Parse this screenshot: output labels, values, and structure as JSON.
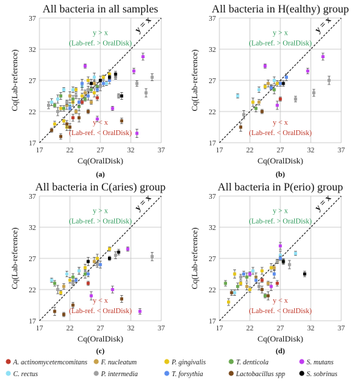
{
  "figure": {
    "ann_upper": "y > x",
    "ann_upper2": "(Lab-ref. > OralDisk)",
    "ann_lower": "y < x",
    "ann_lower2": "(Lab-ref. < OralDisk)",
    "diagonal_label": "y = x"
  },
  "legend": [
    {
      "name": "A. actinomycetemcomitans",
      "color": "#c0392b"
    },
    {
      "name": "F. nucleatum",
      "color": "#c8a14b"
    },
    {
      "name": "P. gingivalis",
      "color": "#e6c619"
    },
    {
      "name": "T. denticola",
      "color": "#6aa84f"
    },
    {
      "name": "S. mutans",
      "color": "#c03cf0"
    },
    {
      "name": "C. rectus",
      "color": "#8fe0f5"
    },
    {
      "name": "P. intermedia",
      "color": "#a0a0a0"
    },
    {
      "name": "T. forsythia",
      "color": "#5b8def"
    },
    {
      "name": "Lactobacillus spp",
      "color": "#7a4a1c"
    },
    {
      "name": "S. sobrinus",
      "color": "#000000"
    }
  ],
  "chart_data": [
    {
      "type": "scatter",
      "title": "All bacteria in all samples",
      "xlabel": "Cq(OralDisk)",
      "ylabel": "Cq(Lab-reference)",
      "letter": "(a)",
      "xlim": [
        17,
        37
      ],
      "ylim": [
        17,
        37
      ],
      "ticks": [
        17,
        22,
        27,
        32,
        37
      ],
      "grid": true,
      "points": [
        {
          "s": "A. actinomycetemcomitans",
          "x": 24.0,
          "y": 23.5
        },
        {
          "s": "A. actinomycetemcomitans",
          "x": 26.5,
          "y": 24.2
        },
        {
          "s": "A. actinomycetemcomitans",
          "x": 22.5,
          "y": 21.0
        },
        {
          "s": "F. nucleatum",
          "x": 21.5,
          "y": 23.0
        },
        {
          "s": "F. nucleatum",
          "x": 23.0,
          "y": 22.0
        },
        {
          "s": "F. nucleatum",
          "x": 24.5,
          "y": 25.0
        },
        {
          "s": "F. nucleatum",
          "x": 26.0,
          "y": 26.5
        },
        {
          "s": "F. nucleatum",
          "x": 22.0,
          "y": 24.5
        },
        {
          "s": "F. nucleatum",
          "x": 25.5,
          "y": 23.5
        },
        {
          "s": "P. gingivalis",
          "x": 20.5,
          "y": 22.5
        },
        {
          "s": "P. gingivalis",
          "x": 21.0,
          "y": 20.5
        },
        {
          "s": "P. gingivalis",
          "x": 22.5,
          "y": 23.5
        },
        {
          "s": "P. gingivalis",
          "x": 23.0,
          "y": 25.5
        },
        {
          "s": "P. gingivalis",
          "x": 24.0,
          "y": 24.5
        },
        {
          "s": "P. gingivalis",
          "x": 25.0,
          "y": 27.0
        },
        {
          "s": "P. gingivalis",
          "x": 26.0,
          "y": 25.0
        },
        {
          "s": "P. gingivalis",
          "x": 27.5,
          "y": 27.5
        },
        {
          "s": "P. gingivalis",
          "x": 19.5,
          "y": 20.0
        },
        {
          "s": "P. gingivalis",
          "x": 21.5,
          "y": 19.5
        },
        {
          "s": "P. gingivalis",
          "x": 28.5,
          "y": 28.0
        },
        {
          "s": "T. denticola",
          "x": 19.5,
          "y": 23.0
        },
        {
          "s": "T. denticola",
          "x": 21.0,
          "y": 22.5
        },
        {
          "s": "T. denticola",
          "x": 22.5,
          "y": 24.0
        },
        {
          "s": "T. denticola",
          "x": 23.5,
          "y": 22.8
        },
        {
          "s": "T. denticola",
          "x": 24.5,
          "y": 24.0
        },
        {
          "s": "T. denticola",
          "x": 25.5,
          "y": 25.5
        },
        {
          "s": "T. denticola",
          "x": 20.5,
          "y": 24.5
        },
        {
          "s": "T. denticola",
          "x": 26.5,
          "y": 26.0
        },
        {
          "s": "S. mutans",
          "x": 24.5,
          "y": 29.3
        },
        {
          "s": "S. mutans",
          "x": 32.5,
          "y": 28.5
        },
        {
          "s": "S. mutans",
          "x": 34.0,
          "y": 30.8
        },
        {
          "s": "S. mutans",
          "x": 33.0,
          "y": 18.5
        },
        {
          "s": "S. mutans",
          "x": 29.0,
          "y": 22.5
        },
        {
          "s": "S. mutans",
          "x": 26.5,
          "y": 20.8
        },
        {
          "s": "C. rectus",
          "x": 19.0,
          "y": 23.5
        },
        {
          "s": "C. rectus",
          "x": 20.0,
          "y": 24.0
        },
        {
          "s": "C. rectus",
          "x": 21.0,
          "y": 25.5
        },
        {
          "s": "C. rectus",
          "x": 22.5,
          "y": 25.5
        },
        {
          "s": "C. rectus",
          "x": 24.0,
          "y": 26.0
        },
        {
          "s": "C. rectus",
          "x": 26.0,
          "y": 27.5
        },
        {
          "s": "C. rectus",
          "x": 28.0,
          "y": 26.5
        },
        {
          "s": "C. rectus",
          "x": 22.0,
          "y": 23.0
        },
        {
          "s": "P. intermedia",
          "x": 18.5,
          "y": 23.0
        },
        {
          "s": "P. intermedia",
          "x": 20.0,
          "y": 22.0
        },
        {
          "s": "P. intermedia",
          "x": 21.5,
          "y": 23.5
        },
        {
          "s": "P. intermedia",
          "x": 23.0,
          "y": 24.5
        },
        {
          "s": "P. intermedia",
          "x": 25.0,
          "y": 25.5
        },
        {
          "s": "P. intermedia",
          "x": 27.0,
          "y": 26.0
        },
        {
          "s": "P. intermedia",
          "x": 29.5,
          "y": 27.5
        },
        {
          "s": "P. intermedia",
          "x": 33.0,
          "y": 26.5
        },
        {
          "s": "P. intermedia",
          "x": 35.5,
          "y": 27.5
        },
        {
          "s": "P. intermedia",
          "x": 34.5,
          "y": 25.0
        },
        {
          "s": "P. intermedia",
          "x": 30.0,
          "y": 24.5
        },
        {
          "s": "T. forsythia",
          "x": 22.0,
          "y": 22.5
        },
        {
          "s": "T. forsythia",
          "x": 23.5,
          "y": 23.5
        },
        {
          "s": "T. forsythia",
          "x": 25.0,
          "y": 24.5
        },
        {
          "s": "T. forsythia",
          "x": 26.5,
          "y": 25.5
        },
        {
          "s": "T. forsythia",
          "x": 27.5,
          "y": 26.5
        },
        {
          "s": "T. forsythia",
          "x": 28.5,
          "y": 27.0
        },
        {
          "s": "T. forsythia",
          "x": 24.0,
          "y": 26.5
        },
        {
          "s": "Lactobacillus spp",
          "x": 19.0,
          "y": 19.0
        },
        {
          "s": "Lactobacillus spp",
          "x": 20.5,
          "y": 18.0
        },
        {
          "s": "Lactobacillus spp",
          "x": 22.0,
          "y": 19.5
        },
        {
          "s": "Lactobacillus spp",
          "x": 23.5,
          "y": 21.0
        },
        {
          "s": "Lactobacillus spp",
          "x": 25.0,
          "y": 22.0
        },
        {
          "s": "Lactobacillus spp",
          "x": 30.5,
          "y": 20.5
        },
        {
          "s": "Lactobacillus spp",
          "x": 21.5,
          "y": 20.0
        },
        {
          "s": "S. sobrinus",
          "x": 25.5,
          "y": 26.5
        },
        {
          "s": "S. sobrinus",
          "x": 28.5,
          "y": 27.5
        },
        {
          "s": "S. sobrinus",
          "x": 29.5,
          "y": 28.0
        },
        {
          "s": "S. sobrinus",
          "x": 30.5,
          "y": 24.5
        },
        {
          "s": "S. sobrinus",
          "x": 27.0,
          "y": 27.0
        }
      ]
    },
    {
      "type": "scatter",
      "title": "All bacteria in H(ealthy) group",
      "xlabel": "Cq(OralDisk)",
      "ylabel": "Cq(Lab-reference)",
      "letter": "(b)",
      "xlim": [
        17,
        37
      ],
      "ylim": [
        17,
        37
      ],
      "ticks": [
        17,
        22,
        27,
        32,
        37
      ],
      "grid": true,
      "points": [
        {
          "s": "A. actinomycetemcomitans",
          "x": 27.0,
          "y": 24.0
        },
        {
          "s": "F. nucleatum",
          "x": 23.5,
          "y": 23.5
        },
        {
          "s": "F. nucleatum",
          "x": 25.0,
          "y": 26.5
        },
        {
          "s": "P. gingivalis",
          "x": 22.5,
          "y": 23.5
        },
        {
          "s": "P. gingivalis",
          "x": 24.5,
          "y": 26.0
        },
        {
          "s": "P. gingivalis",
          "x": 26.5,
          "y": 26.5
        },
        {
          "s": "T. denticola",
          "x": 23.0,
          "y": 22.5
        },
        {
          "s": "T. denticola",
          "x": 26.0,
          "y": 25.5
        },
        {
          "s": "S. mutans",
          "x": 24.5,
          "y": 29.3
        },
        {
          "s": "S. mutans",
          "x": 31.5,
          "y": 28.5
        },
        {
          "s": "S. mutans",
          "x": 34.0,
          "y": 30.8
        },
        {
          "s": "S. mutans",
          "x": 26.5,
          "y": 23.0
        },
        {
          "s": "C. rectus",
          "x": 20.0,
          "y": 24.5
        },
        {
          "s": "C. rectus",
          "x": 23.5,
          "y": 25.5
        },
        {
          "s": "C. rectus",
          "x": 26.0,
          "y": 27.0
        },
        {
          "s": "P. intermedia",
          "x": 21.0,
          "y": 21.5
        },
        {
          "s": "P. intermedia",
          "x": 25.5,
          "y": 26.0
        },
        {
          "s": "P. intermedia",
          "x": 29.5,
          "y": 24.0
        },
        {
          "s": "P. intermedia",
          "x": 32.5,
          "y": 25.0
        },
        {
          "s": "P. intermedia",
          "x": 35.0,
          "y": 27.0
        },
        {
          "s": "T. forsythia",
          "x": 25.5,
          "y": 25.8
        },
        {
          "s": "T. forsythia",
          "x": 27.0,
          "y": 26.5
        },
        {
          "s": "T. forsythia",
          "x": 28.0,
          "y": 27.5
        },
        {
          "s": "Lactobacillus spp",
          "x": 20.5,
          "y": 19.5
        },
        {
          "s": "Lactobacillus spp",
          "x": 24.0,
          "y": 22.0
        },
        {
          "s": "S. sobrinus",
          "x": 27.5,
          "y": 26.5
        }
      ]
    },
    {
      "type": "scatter",
      "title": "All bacteria in C(aries) group",
      "xlabel": "Cq(OralDisk)",
      "ylabel": "Cq(Lab-reference)",
      "letter": "(c)",
      "xlim": [
        17,
        37
      ],
      "ylim": [
        17,
        37
      ],
      "ticks": [
        17,
        22,
        27,
        32,
        37
      ],
      "grid": true,
      "points": [
        {
          "s": "A. actinomycetemcomitans",
          "x": 25.0,
          "y": 23.0
        },
        {
          "s": "F. nucleatum",
          "x": 21.0,
          "y": 22.5
        },
        {
          "s": "F. nucleatum",
          "x": 23.5,
          "y": 25.0
        },
        {
          "s": "F. nucleatum",
          "x": 26.0,
          "y": 26.5
        },
        {
          "s": "P. gingivalis",
          "x": 20.5,
          "y": 21.5
        },
        {
          "s": "P. gingivalis",
          "x": 22.0,
          "y": 23.5
        },
        {
          "s": "P. gingivalis",
          "x": 24.5,
          "y": 25.5
        },
        {
          "s": "P. gingivalis",
          "x": 26.5,
          "y": 27.0
        },
        {
          "s": "P. gingivalis",
          "x": 28.5,
          "y": 28.5
        },
        {
          "s": "T. denticola",
          "x": 19.5,
          "y": 23.0
        },
        {
          "s": "T. denticola",
          "x": 22.5,
          "y": 24.0
        },
        {
          "s": "T. denticola",
          "x": 24.5,
          "y": 24.5
        },
        {
          "s": "S. mutans",
          "x": 31.5,
          "y": 28.5
        },
        {
          "s": "S. mutans",
          "x": 33.5,
          "y": 18.5
        },
        {
          "s": "S. mutans",
          "x": 29.0,
          "y": 22.0
        },
        {
          "s": "S. mutans",
          "x": 25.5,
          "y": 21.0
        },
        {
          "s": "C. rectus",
          "x": 19.0,
          "y": 23.5
        },
        {
          "s": "C. rectus",
          "x": 21.5,
          "y": 24.5
        },
        {
          "s": "C. rectus",
          "x": 23.5,
          "y": 25.0
        },
        {
          "s": "P. intermedia",
          "x": 20.0,
          "y": 22.0
        },
        {
          "s": "P. intermedia",
          "x": 22.5,
          "y": 23.0
        },
        {
          "s": "P. intermedia",
          "x": 26.5,
          "y": 26.0
        },
        {
          "s": "P. intermedia",
          "x": 29.5,
          "y": 27.5
        },
        {
          "s": "P. intermedia",
          "x": 35.5,
          "y": 27.3
        },
        {
          "s": "T. forsythia",
          "x": 23.0,
          "y": 23.5
        },
        {
          "s": "T. forsythia",
          "x": 25.0,
          "y": 24.5
        },
        {
          "s": "T. forsythia",
          "x": 27.0,
          "y": 26.0
        },
        {
          "s": "Lactobacillus spp",
          "x": 19.5,
          "y": 18.5
        },
        {
          "s": "Lactobacillus spp",
          "x": 21.0,
          "y": 18.0
        },
        {
          "s": "Lactobacillus spp",
          "x": 22.5,
          "y": 19.5
        },
        {
          "s": "Lactobacillus spp",
          "x": 30.5,
          "y": 20.5
        },
        {
          "s": "S. sobrinus",
          "x": 25.0,
          "y": 26.5
        },
        {
          "s": "S. sobrinus",
          "x": 28.5,
          "y": 27.0
        },
        {
          "s": "S. sobrinus",
          "x": 30.0,
          "y": 28.0
        }
      ]
    },
    {
      "type": "scatter",
      "title": "All bacteria in P(erio) group",
      "xlabel": "Cq(OralDisk)",
      "ylabel": "Cq(Lab-reference)",
      "letter": "(d)",
      "xlim": [
        17,
        37
      ],
      "ylim": [
        17,
        37
      ],
      "ticks": [
        17,
        22,
        27,
        32,
        37
      ],
      "grid": true,
      "points": [
        {
          "s": "A. actinomycetemcomitans",
          "x": 24.0,
          "y": 23.5
        },
        {
          "s": "A. actinomycetemcomitans",
          "x": 26.5,
          "y": 23.0
        },
        {
          "s": "F. nucleatum",
          "x": 21.5,
          "y": 22.5
        },
        {
          "s": "F. nucleatum",
          "x": 23.0,
          "y": 24.0
        },
        {
          "s": "F. nucleatum",
          "x": 25.0,
          "y": 23.0
        },
        {
          "s": "F. nucleatum",
          "x": 26.0,
          "y": 25.5
        },
        {
          "s": "P. gingivalis",
          "x": 18.5,
          "y": 20.0
        },
        {
          "s": "P. gingivalis",
          "x": 19.5,
          "y": 24.5
        },
        {
          "s": "P. gingivalis",
          "x": 20.5,
          "y": 23.0
        },
        {
          "s": "P. gingivalis",
          "x": 22.0,
          "y": 22.0
        },
        {
          "s": "P. gingivalis",
          "x": 24.0,
          "y": 25.0
        },
        {
          "s": "P. gingivalis",
          "x": 25.5,
          "y": 25.5
        },
        {
          "s": "P. gingivalis",
          "x": 26.5,
          "y": 26.5
        },
        {
          "s": "T. denticola",
          "x": 18.0,
          "y": 23.0
        },
        {
          "s": "T. denticola",
          "x": 20.0,
          "y": 22.5
        },
        {
          "s": "T. denticola",
          "x": 21.5,
          "y": 24.0
        },
        {
          "s": "T. denticola",
          "x": 24.5,
          "y": 21.0
        },
        {
          "s": "T. denticola",
          "x": 27.5,
          "y": 26.5
        },
        {
          "s": "S. mutans",
          "x": 27.0,
          "y": 29.0
        },
        {
          "s": "S. mutans",
          "x": 25.5,
          "y": 22.5
        },
        {
          "s": "S. mutans",
          "x": 22.0,
          "y": 24.5
        },
        {
          "s": "C. rectus",
          "x": 19.5,
          "y": 21.5
        },
        {
          "s": "C. rectus",
          "x": 22.5,
          "y": 25.0
        },
        {
          "s": "C. rectus",
          "x": 27.0,
          "y": 27.5
        },
        {
          "s": "C. rectus",
          "x": 29.5,
          "y": 27.8
        },
        {
          "s": "P. intermedia",
          "x": 20.5,
          "y": 24.0
        },
        {
          "s": "P. intermedia",
          "x": 23.5,
          "y": 22.5
        },
        {
          "s": "P. intermedia",
          "x": 28.5,
          "y": 26.0
        },
        {
          "s": "P. intermedia",
          "x": 26.5,
          "y": 26.5
        },
        {
          "s": "T. forsythia",
          "x": 21.0,
          "y": 24.5
        },
        {
          "s": "T. forsythia",
          "x": 23.0,
          "y": 23.5
        },
        {
          "s": "T. forsythia",
          "x": 26.0,
          "y": 24.5
        },
        {
          "s": "T. forsythia",
          "x": 27.0,
          "y": 27.0
        },
        {
          "s": "Lactobacillus spp",
          "x": 19.0,
          "y": 21.5
        },
        {
          "s": "Lactobacillus spp",
          "x": 24.0,
          "y": 22.0
        },
        {
          "s": "Lactobacillus spp",
          "x": 25.0,
          "y": 21.0
        },
        {
          "s": "S. sobrinus",
          "x": 27.5,
          "y": 26.5
        },
        {
          "s": "S. sobrinus",
          "x": 31.0,
          "y": 24.5
        }
      ]
    }
  ]
}
